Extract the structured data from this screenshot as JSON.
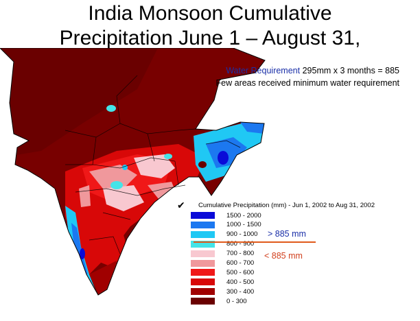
{
  "title_line1": "India Monsoon Cumulative",
  "title_line2": "Precipitation June 1 – August 31,",
  "note": {
    "highlight": "Water Requirement",
    "calc": "295mm x 3 months = 885",
    "line2": "Few areas received minimum water requirement"
  },
  "legend": {
    "title": "Cumulative Precipitation (mm) - Jun 1, 2002 to Aug 31, 2002",
    "items": [
      {
        "range": "1500 - 2000",
        "color": "#0a0ad8"
      },
      {
        "range": "1000 - 1500",
        "color": "#1c78f0"
      },
      {
        "range": "900 - 1000",
        "color": "#20c8f4"
      },
      {
        "range": "800 - 900",
        "color": "#44e4e8"
      },
      {
        "range": "700 - 800",
        "color": "#f8c8d0"
      },
      {
        "range": "600 - 700",
        "color": "#f0989c"
      },
      {
        "range": "500 - 600",
        "color": "#f01818"
      },
      {
        "range": "400 - 500",
        "color": "#d80808"
      },
      {
        "range": "300 - 400",
        "color": "#a00000"
      },
      {
        "range": "0 - 300",
        "color": "#6a0000"
      }
    ]
  },
  "annotations": {
    "above": "> 885 mm",
    "below": "< 885 mm"
  },
  "colors": {
    "above_text": "#1a2fa8",
    "below_text": "#d1401e",
    "divider": "#e05a1a"
  }
}
